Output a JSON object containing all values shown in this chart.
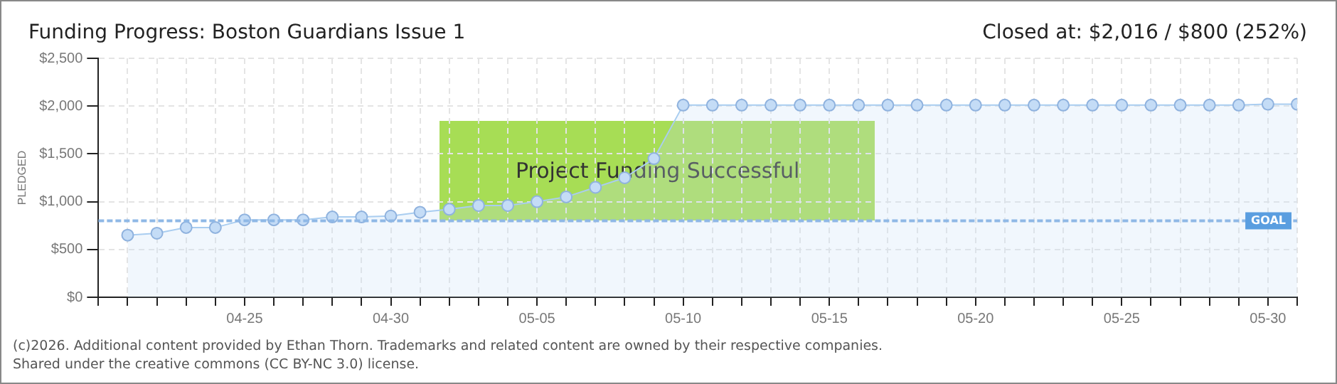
{
  "chart_data": {
    "type": "area",
    "title": "Funding Progress: Boston Guardians Issue 1",
    "subtitle": "Closed at: $2,016 / $800 (252%)",
    "ylabel": "PLEDGED",
    "x": [
      "--04-21",
      "--04-22",
      "--04-23",
      "--04-24",
      "--04-25",
      "--04-26",
      "--04-27",
      "--04-28",
      "--04-29",
      "--04-30",
      "--05-01",
      "--05-02",
      "--05-03",
      "--05-04",
      "--05-05",
      "--05-06",
      "--05-07",
      "--05-08",
      "--05-09",
      "--05-10",
      "--05-11",
      "--05-12",
      "--05-13",
      "--05-14",
      "--05-15",
      "--05-16",
      "--05-17",
      "--05-18",
      "--05-19",
      "--05-20",
      "--05-21",
      "--05-22",
      "--05-23",
      "--05-24",
      "--05-25",
      "--05-26",
      "--05-27",
      "--05-28",
      "--05-29",
      "--05-30",
      "--05-31"
    ],
    "series": [
      {
        "color": "#a9cdf0",
        "values": [
          650,
          670,
          730,
          730,
          810,
          810,
          810,
          840,
          840,
          850,
          890,
          920,
          960,
          960,
          1000,
          1050,
          1150,
          1250,
          1450,
          2010,
          2010,
          2010,
          2010,
          2010,
          2010,
          2010,
          2010,
          2010,
          2010,
          2010,
          2010,
          2010,
          2010,
          2010,
          2010,
          2010,
          2010,
          2010,
          2010,
          2020,
          2020
        ]
      }
    ],
    "xlim": [
      "--04-20",
      "--05-31"
    ],
    "xticks": [
      {
        "value": "--04-20",
        "label": null
      },
      {
        "value": "--04-21",
        "label": null
      },
      {
        "value": "--04-22",
        "label": null
      },
      {
        "value": "--04-23",
        "label": null
      },
      {
        "value": "--04-24",
        "label": null
      },
      {
        "value": "--04-25",
        "label": "04-25"
      },
      {
        "value": "--04-26",
        "label": null
      },
      {
        "value": "--04-27",
        "label": null
      },
      {
        "value": "--04-28",
        "label": null
      },
      {
        "value": "--04-29",
        "label": null
      },
      {
        "value": "--04-30",
        "label": "04-30"
      },
      {
        "value": "--05-01",
        "label": null
      },
      {
        "value": "--05-02",
        "label": null
      },
      {
        "value": "--05-03",
        "label": null
      },
      {
        "value": "--05-04",
        "label": null
      },
      {
        "value": "--05-05",
        "label": "05-05"
      },
      {
        "value": "--05-06",
        "label": null
      },
      {
        "value": "--05-07",
        "label": null
      },
      {
        "value": "--05-08",
        "label": null
      },
      {
        "value": "--05-09",
        "label": null
      },
      {
        "value": "--05-10",
        "label": "05-10"
      },
      {
        "value": "--05-11",
        "label": null
      },
      {
        "value": "--05-12",
        "label": null
      },
      {
        "value": "--05-13",
        "label": null
      },
      {
        "value": "--05-14",
        "label": null
      },
      {
        "value": "--05-15",
        "label": "05-15"
      },
      {
        "value": "--05-16",
        "label": null
      },
      {
        "value": "--05-17",
        "label": null
      },
      {
        "value": "--05-18",
        "label": null
      },
      {
        "value": "--05-19",
        "label": null
      },
      {
        "value": "--05-20",
        "label": "05-20"
      },
      {
        "value": "--05-21",
        "label": null
      },
      {
        "value": "--05-22",
        "label": null
      },
      {
        "value": "--05-23",
        "label": null
      },
      {
        "value": "--05-24",
        "label": null
      },
      {
        "value": "--05-25",
        "label": "05-25"
      },
      {
        "value": "--05-26",
        "label": null
      },
      {
        "value": "--05-27",
        "label": null
      },
      {
        "value": "--05-28",
        "label": null
      },
      {
        "value": "--05-29",
        "label": null
      },
      {
        "value": "--05-30",
        "label": "05-30"
      },
      {
        "value": "--05-31",
        "label": null
      }
    ],
    "ylim": [
      0,
      2500
    ],
    "yticks": [
      {
        "value": 0,
        "label": "$0"
      },
      {
        "value": 500,
        "label": "$500"
      },
      {
        "value": 1000,
        "label": "$1,000"
      },
      {
        "value": 1500,
        "label": "$1,500"
      },
      {
        "value": 2000,
        "label": "$2,000"
      },
      {
        "value": 2500,
        "label": "$2,500"
      }
    ],
    "ref_lines": [
      {
        "axis": "y",
        "value": 800,
        "label": "GOAL",
        "color": "#8fb8e6",
        "line_style": "dashed"
      }
    ],
    "annotations": [
      "Project Funding Successful",
      "(c)2026. Additional content provided by Ethan Thorn. Trademarks and related content are owned by their respective companies.",
      "Shared under the creative commons (CC BY-NC 3.0) license."
    ],
    "grid": true,
    "marker": "circle",
    "legend": false
  }
}
